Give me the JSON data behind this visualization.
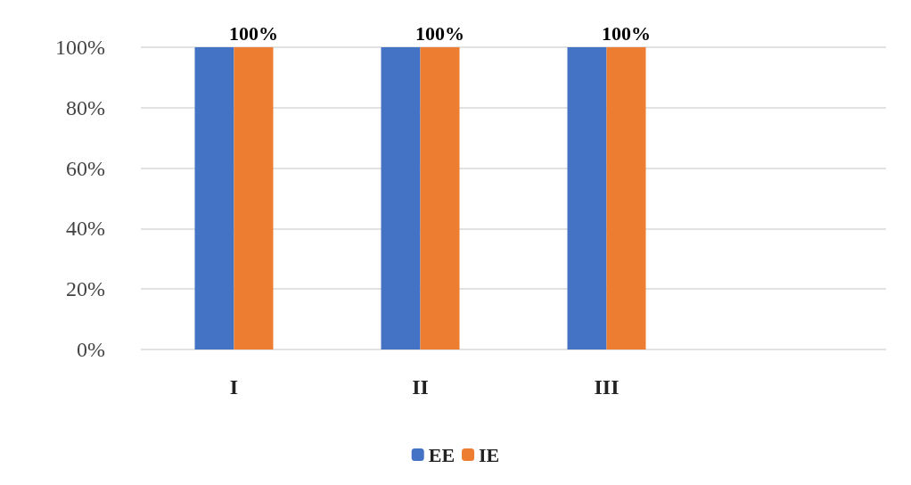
{
  "chart_data": {
    "type": "bar",
    "categories": [
      "I",
      "II",
      "III",
      null
    ],
    "series": [
      {
        "name": "EE",
        "color": "#4472c4",
        "values": [
          100,
          100,
          100,
          null
        ]
      },
      {
        "name": "IE",
        "color": "#ed7d31",
        "values": [
          100,
          100,
          100,
          null
        ],
        "value_labels": [
          "100%",
          "100%",
          "100%",
          null
        ]
      }
    ],
    "ylim": [
      0,
      100
    ],
    "yticks": [
      {
        "value": 0,
        "label": "0%"
      },
      {
        "value": 20,
        "label": "20%"
      },
      {
        "value": 40,
        "label": "40%"
      },
      {
        "value": 60,
        "label": "60%"
      },
      {
        "value": 80,
        "label": "80%"
      },
      {
        "value": 100,
        "label": "100%"
      }
    ],
    "grid": "y",
    "legend": "bottom"
  }
}
